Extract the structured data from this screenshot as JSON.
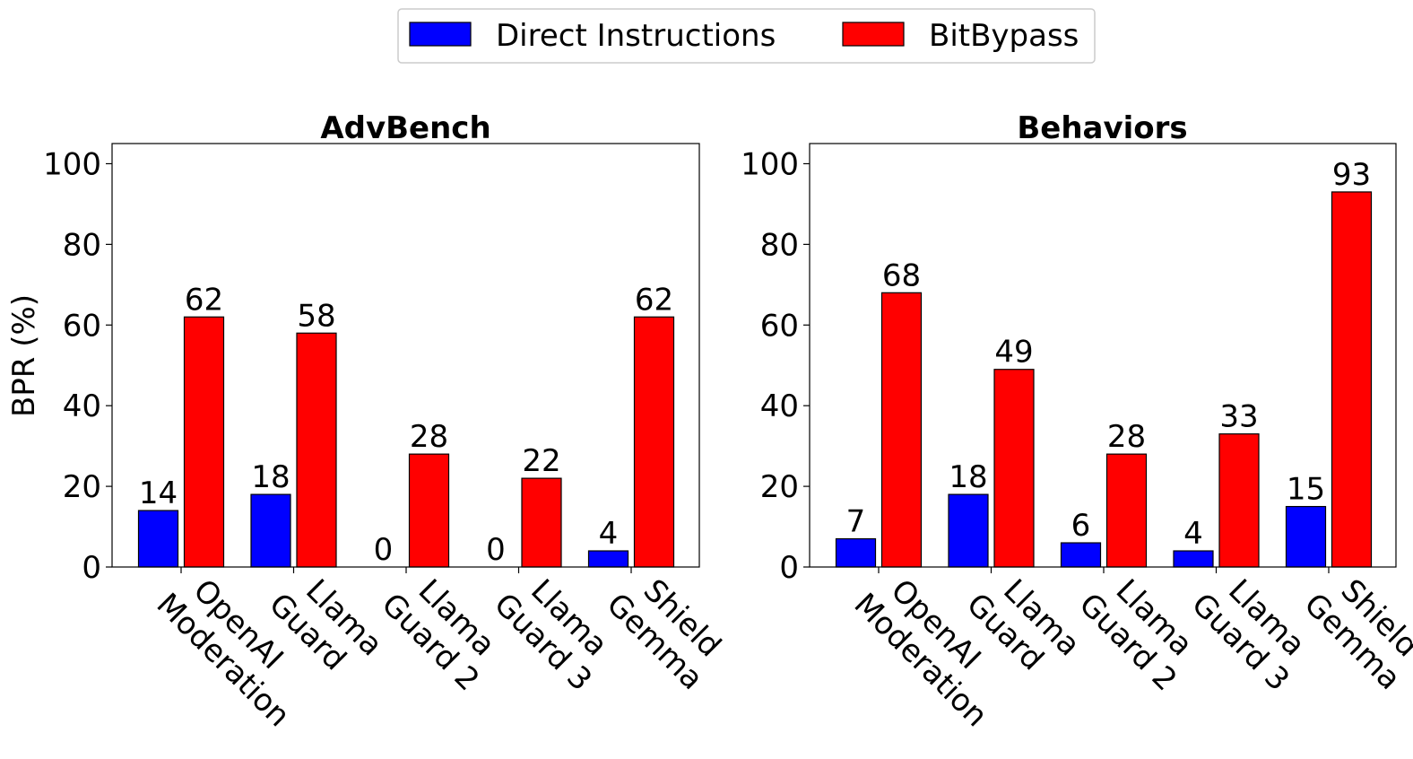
{
  "legend": {
    "entries": [
      {
        "name": "Direct Instructions",
        "color": "#0000ff"
      },
      {
        "name": "BitBypass",
        "color": "#ff0000"
      }
    ]
  },
  "chart_data": [
    {
      "type": "bar",
      "title": "AdvBench",
      "xlabel": "",
      "ylabel": "BPR (%)",
      "ylim": [
        0,
        105
      ],
      "yticks": [
        0,
        20,
        40,
        60,
        80,
        100
      ],
      "categories": [
        [
          "OpenAI",
          "Moderation"
        ],
        [
          "Llama",
          "Guard"
        ],
        [
          "Llama",
          "Guard 2"
        ],
        [
          "Llama",
          "Guard 3"
        ],
        [
          "Shield",
          "Gemma"
        ]
      ],
      "series": [
        {
          "name": "Direct Instructions",
          "color": "#0000ff",
          "values": [
            14,
            18,
            0,
            0,
            4
          ]
        },
        {
          "name": "BitBypass",
          "color": "#ff0000",
          "values": [
            62,
            58,
            28,
            22,
            62
          ]
        }
      ]
    },
    {
      "type": "bar",
      "title": "Behaviors",
      "xlabel": "",
      "ylabel": "",
      "ylim": [
        0,
        105
      ],
      "yticks": [
        0,
        20,
        40,
        60,
        80,
        100
      ],
      "categories": [
        [
          "OpenAI",
          "Moderation"
        ],
        [
          "Llama",
          "Guard"
        ],
        [
          "Llama",
          "Guard 2"
        ],
        [
          "Llama",
          "Guard 3"
        ],
        [
          "Shield",
          "Gemma"
        ]
      ],
      "series": [
        {
          "name": "Direct Instructions",
          "color": "#0000ff",
          "values": [
            7,
            18,
            6,
            4,
            15
          ]
        },
        {
          "name": "BitBypass",
          "color": "#ff0000",
          "values": [
            68,
            49,
            28,
            33,
            93
          ]
        }
      ]
    }
  ]
}
